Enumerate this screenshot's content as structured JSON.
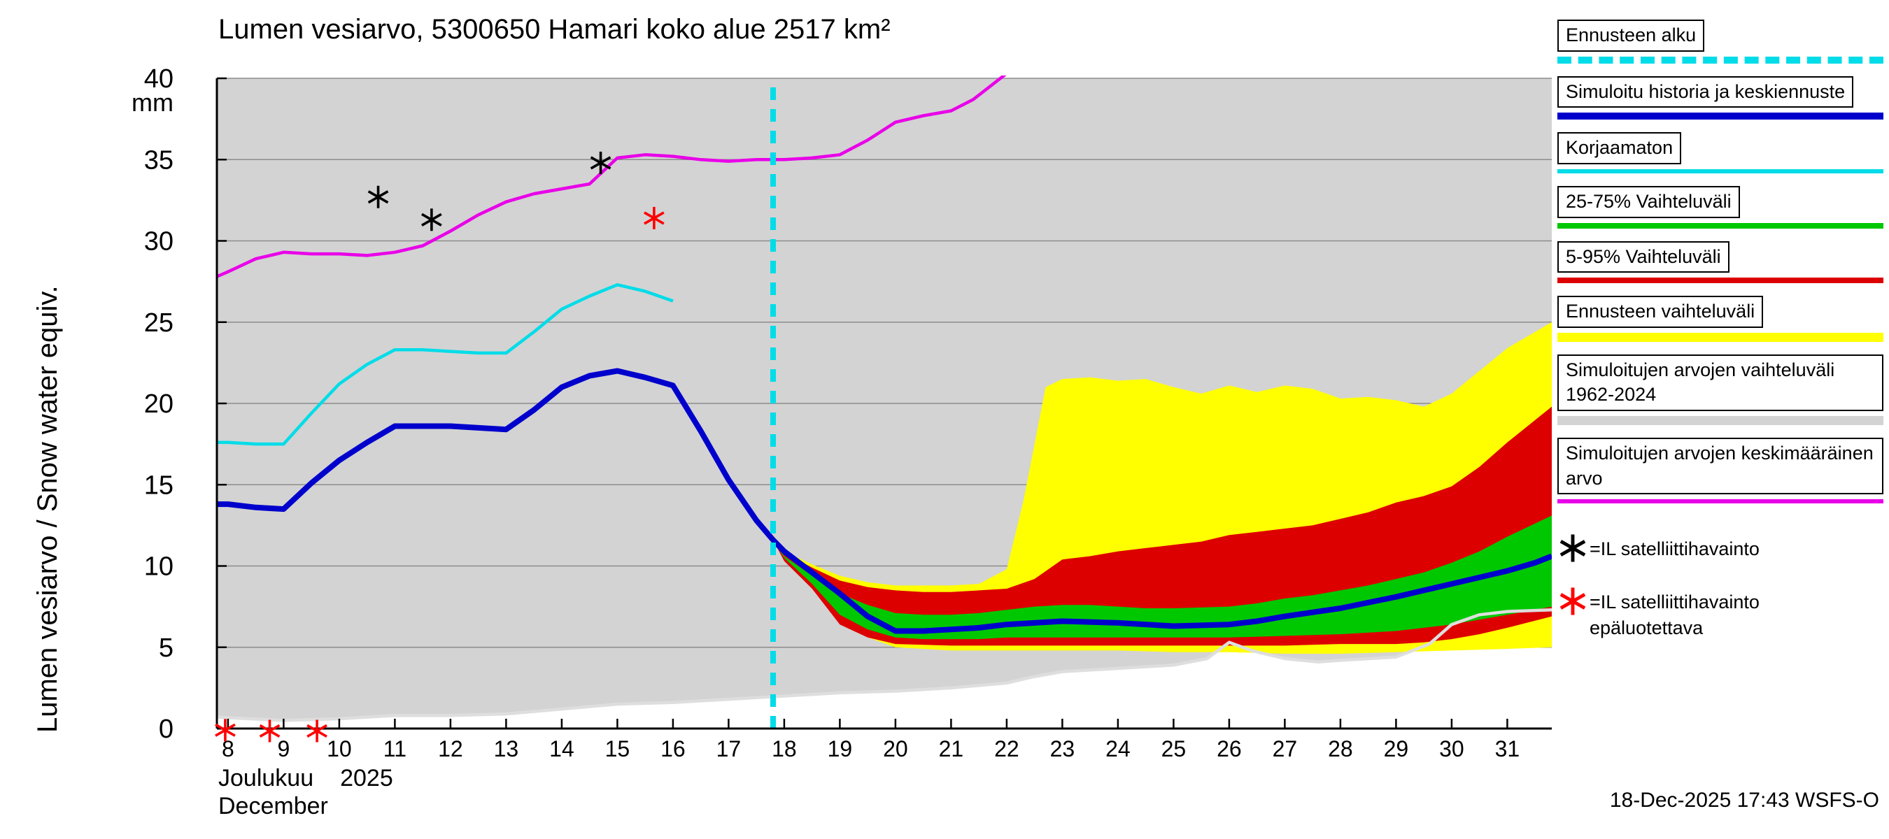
{
  "title": "Lumen vesiarvo, 5300650 Hamari koko alue 2517 km²",
  "y_axis": {
    "label": "Lumen vesiarvo / Snow water equiv.",
    "unit": "mm"
  },
  "x_axis": {
    "month_fi": "Joulukuu",
    "year": "2025",
    "month_en": "December"
  },
  "footer": {
    "timestamp": "18-Dec-2025 17:43 WSFS-O"
  },
  "legend": {
    "items": [
      {
        "label": "Ennusteen alku",
        "swatch": "dashed-cyan-line"
      },
      {
        "label": "Simuloitu historia ja keskiennuste",
        "swatch": "blue-line"
      },
      {
        "label": "Korjaamaton",
        "swatch": "cyan-line"
      },
      {
        "label": "25-75% Vaihteluväli",
        "swatch": "green-band"
      },
      {
        "label": "5-95% Vaihteluväli",
        "swatch": "red-band"
      },
      {
        "label": "Ennusteen vaihteluväli",
        "swatch": "yellow-band"
      },
      {
        "label": "Simuloitujen arvojen vaihteluväli 1962-2024",
        "swatch": "gray-band"
      },
      {
        "label": "Simuloitujen arvojen keskimääräinen arvo",
        "swatch": "magenta-line"
      },
      {
        "label": "=IL satelliittihavainto",
        "marker": "black-asterisk"
      },
      {
        "label": "=IL satelliittihavainto epäluotettava",
        "marker": "red-asterisk"
      }
    ]
  },
  "chart_data": {
    "type": "area",
    "title": "Lumen vesiarvo, 5300650 Hamari koko alue 2517 km²",
    "xlabel": "Joulukuu 2025 / December (day of month)",
    "ylabel": "Lumen vesiarvo / Snow water equiv. (mm)",
    "x_range": [
      7.8,
      31.8
    ],
    "y_range": [
      0,
      40
    ],
    "x_ticks": [
      8,
      9,
      10,
      11,
      12,
      13,
      14,
      15,
      16,
      17,
      18,
      19,
      20,
      21,
      22,
      23,
      24,
      25,
      26,
      27,
      28,
      29,
      30,
      31
    ],
    "y_ticks": [
      0,
      5,
      10,
      15,
      20,
      25,
      30,
      35,
      40
    ],
    "grid": "horizontal",
    "legend_position": "right",
    "forecast_start_x": 17.8,
    "colors": {
      "history_band": "#d3d3d3",
      "history_edge": "#dedede",
      "grid": "#8c8c8c",
      "forecast_band": "#ffff00",
      "band_5_95": "#dd0000",
      "band_25_75": "#00c800",
      "mean_line": "#e800e8",
      "uncorrected_line": "#00dce8",
      "main_line": "#0000cd",
      "forecast_start": "#00dce8",
      "marker_ok": "#000000",
      "marker_bad": "#ff0000"
    },
    "series": {
      "history_envelope": {
        "name": "Simuloitujen arvojen vaihteluväli 1962-2024",
        "upper": [
          [
            7.8,
            40
          ],
          [
            31.8,
            40
          ]
        ],
        "lower": [
          [
            7.8,
            0.7
          ],
          [
            9,
            0.5
          ],
          [
            10,
            0.6
          ],
          [
            11,
            0.8
          ],
          [
            12,
            0.8
          ],
          [
            13,
            0.9
          ],
          [
            14,
            1.2
          ],
          [
            15,
            1.5
          ],
          [
            16,
            1.6
          ],
          [
            17,
            1.8
          ],
          [
            18,
            2.0
          ],
          [
            19,
            2.2
          ],
          [
            20,
            2.3
          ],
          [
            21,
            2.5
          ],
          [
            22,
            2.8
          ],
          [
            22.5,
            3.2
          ],
          [
            23,
            3.5
          ],
          [
            24,
            3.7
          ],
          [
            25,
            3.9
          ],
          [
            25.6,
            4.3
          ],
          [
            26,
            5.3
          ],
          [
            26.4,
            4.8
          ],
          [
            27,
            4.3
          ],
          [
            27.6,
            4.1
          ],
          [
            28,
            4.2
          ],
          [
            29,
            4.4
          ],
          [
            29.6,
            5.2
          ],
          [
            30,
            6.4
          ],
          [
            30.5,
            7.0
          ],
          [
            31,
            7.2
          ],
          [
            31.8,
            7.3
          ]
        ]
      },
      "history_mean_1962_2024": {
        "name": "Simuloitujen arvojen keskimääräinen arvo",
        "points": [
          [
            7.8,
            27.8
          ],
          [
            8,
            28.1
          ],
          [
            8.5,
            28.9
          ],
          [
            9,
            29.3
          ],
          [
            9.5,
            29.2
          ],
          [
            10,
            29.2
          ],
          [
            10.5,
            29.1
          ],
          [
            11,
            29.3
          ],
          [
            11.5,
            29.7
          ],
          [
            12,
            30.6
          ],
          [
            12.5,
            31.6
          ],
          [
            13,
            32.4
          ],
          [
            13.5,
            32.9
          ],
          [
            14,
            33.2
          ],
          [
            14.5,
            33.5
          ],
          [
            15,
            35.1
          ],
          [
            15.5,
            35.3
          ],
          [
            16,
            35.2
          ],
          [
            16.5,
            35.0
          ],
          [
            17,
            34.9
          ],
          [
            17.5,
            35.0
          ],
          [
            18,
            35.0
          ],
          [
            18.5,
            35.1
          ],
          [
            19,
            35.3
          ],
          [
            19.5,
            36.2
          ],
          [
            20,
            37.3
          ],
          [
            20.5,
            37.7
          ],
          [
            21,
            38.0
          ],
          [
            21.4,
            38.7
          ],
          [
            22,
            40.3
          ]
        ]
      },
      "uncorrected": {
        "name": "Korjaamaton",
        "points": [
          [
            7.8,
            17.6
          ],
          [
            8,
            17.6
          ],
          [
            8.5,
            17.5
          ],
          [
            9,
            17.5
          ],
          [
            9.5,
            19.4
          ],
          [
            10,
            21.2
          ],
          [
            10.5,
            22.4
          ],
          [
            11,
            23.3
          ],
          [
            11.5,
            23.3
          ],
          [
            12,
            23.2
          ],
          [
            12.5,
            23.1
          ],
          [
            13,
            23.1
          ],
          [
            13.5,
            24.4
          ],
          [
            14,
            25.8
          ],
          [
            14.5,
            26.6
          ],
          [
            15,
            27.3
          ],
          [
            15.5,
            26.9
          ],
          [
            16,
            26.3
          ]
        ]
      },
      "simulated_and_forecast": {
        "name": "Simuloitu historia ja keskiennuste",
        "points": [
          [
            7.8,
            13.8
          ],
          [
            8,
            13.8
          ],
          [
            8.5,
            13.6
          ],
          [
            9,
            13.5
          ],
          [
            9.5,
            15.1
          ],
          [
            10,
            16.5
          ],
          [
            10.5,
            17.6
          ],
          [
            11,
            18.6
          ],
          [
            11.5,
            18.6
          ],
          [
            12,
            18.6
          ],
          [
            12.5,
            18.5
          ],
          [
            13,
            18.4
          ],
          [
            13.5,
            19.6
          ],
          [
            14,
            21.0
          ],
          [
            14.5,
            21.7
          ],
          [
            15,
            22.0
          ],
          [
            15.5,
            21.6
          ],
          [
            16,
            21.1
          ],
          [
            16.5,
            18.3
          ],
          [
            17,
            15.3
          ],
          [
            17.5,
            12.8
          ],
          [
            17.8,
            11.6
          ],
          [
            18,
            10.9
          ],
          [
            18.5,
            9.6
          ],
          [
            19,
            8.3
          ],
          [
            19.5,
            6.9
          ],
          [
            20,
            6.0
          ],
          [
            20.5,
            6.0
          ],
          [
            21,
            6.1
          ],
          [
            21.5,
            6.2
          ],
          [
            22,
            6.4
          ],
          [
            23,
            6.6
          ],
          [
            24,
            6.5
          ],
          [
            25,
            6.3
          ],
          [
            26,
            6.4
          ],
          [
            26.5,
            6.6
          ],
          [
            27,
            6.9
          ],
          [
            28,
            7.4
          ],
          [
            29,
            8.1
          ],
          [
            30,
            8.9
          ],
          [
            31,
            9.7
          ],
          [
            31.5,
            10.2
          ],
          [
            31.8,
            10.6
          ]
        ]
      },
      "forecast_total": {
        "name": "Ennusteen vaihteluväli",
        "upper": [
          [
            17.8,
            11.6
          ],
          [
            18,
            10.9
          ],
          [
            18.5,
            10.1
          ],
          [
            19,
            9.4
          ],
          [
            19.5,
            9.0
          ],
          [
            20,
            8.8
          ],
          [
            20.5,
            8.8
          ],
          [
            21,
            8.8
          ],
          [
            21.5,
            8.9
          ],
          [
            22,
            9.8
          ],
          [
            22.3,
            14.0
          ],
          [
            22.7,
            21.0
          ],
          [
            23,
            21.5
          ],
          [
            23.5,
            21.6
          ],
          [
            24,
            21.4
          ],
          [
            24.5,
            21.5
          ],
          [
            25,
            21.0
          ],
          [
            25.5,
            20.6
          ],
          [
            26,
            21.1
          ],
          [
            26.5,
            20.7
          ],
          [
            27,
            21.1
          ],
          [
            27.5,
            20.9
          ],
          [
            28,
            20.3
          ],
          [
            28.5,
            20.4
          ],
          [
            29,
            20.2
          ],
          [
            29.5,
            19.8
          ],
          [
            30,
            20.6
          ],
          [
            30.5,
            22.0
          ],
          [
            31,
            23.4
          ],
          [
            31.8,
            25.0
          ]
        ],
        "lower": [
          [
            17.8,
            11.6
          ],
          [
            18,
            10.4
          ],
          [
            18.5,
            8.8
          ],
          [
            19,
            6.8
          ],
          [
            19.5,
            5.6
          ],
          [
            20,
            5.0
          ],
          [
            20.5,
            4.9
          ],
          [
            21,
            4.8
          ],
          [
            22,
            4.8
          ],
          [
            23,
            4.8
          ],
          [
            24,
            4.8
          ],
          [
            25,
            4.7
          ],
          [
            26,
            4.7
          ],
          [
            27,
            4.6
          ],
          [
            28,
            4.6
          ],
          [
            29,
            4.7
          ],
          [
            30,
            4.8
          ],
          [
            31,
            4.9
          ],
          [
            31.8,
            5.0
          ]
        ]
      },
      "range_5_95": {
        "name": "5-95% Vaihteluväli",
        "upper": [
          [
            17.8,
            11.6
          ],
          [
            18,
            10.8
          ],
          [
            18.5,
            9.9
          ],
          [
            19,
            9.1
          ],
          [
            19.5,
            8.7
          ],
          [
            20,
            8.5
          ],
          [
            20.5,
            8.4
          ],
          [
            21,
            8.4
          ],
          [
            21.5,
            8.5
          ],
          [
            22,
            8.6
          ],
          [
            22.5,
            9.2
          ],
          [
            23,
            10.4
          ],
          [
            23.5,
            10.6
          ],
          [
            24,
            10.9
          ],
          [
            24.5,
            11.1
          ],
          [
            25,
            11.3
          ],
          [
            25.5,
            11.5
          ],
          [
            26,
            11.9
          ],
          [
            26.5,
            12.1
          ],
          [
            27,
            12.3
          ],
          [
            27.5,
            12.5
          ],
          [
            28,
            12.9
          ],
          [
            28.5,
            13.3
          ],
          [
            29,
            13.9
          ],
          [
            29.5,
            14.3
          ],
          [
            30,
            14.9
          ],
          [
            30.5,
            16.1
          ],
          [
            31,
            17.6
          ],
          [
            31.8,
            19.8
          ]
        ],
        "lower": [
          [
            17.8,
            11.6
          ],
          [
            18,
            10.3
          ],
          [
            18.5,
            8.6
          ],
          [
            19,
            6.4
          ],
          [
            19.5,
            5.6
          ],
          [
            20,
            5.2
          ],
          [
            21,
            5.1
          ],
          [
            22,
            5.1
          ],
          [
            23,
            5.1
          ],
          [
            24,
            5.1
          ],
          [
            25,
            5.1
          ],
          [
            26,
            5.1
          ],
          [
            27,
            5.1
          ],
          [
            28,
            5.2
          ],
          [
            29,
            5.2
          ],
          [
            29.5,
            5.3
          ],
          [
            30,
            5.5
          ],
          [
            30.5,
            5.8
          ],
          [
            31,
            6.2
          ],
          [
            31.8,
            6.9
          ]
        ]
      },
      "range_25_75": {
        "name": "25-75% Vaihteluväli",
        "upper": [
          [
            17.8,
            11.6
          ],
          [
            18,
            10.6
          ],
          [
            18.5,
            9.4
          ],
          [
            19,
            8.3
          ],
          [
            19.5,
            7.6
          ],
          [
            20,
            7.1
          ],
          [
            20.5,
            7.0
          ],
          [
            21,
            7.0
          ],
          [
            21.5,
            7.1
          ],
          [
            22,
            7.3
          ],
          [
            22.5,
            7.5
          ],
          [
            23,
            7.6
          ],
          [
            23.5,
            7.6
          ],
          [
            24,
            7.5
          ],
          [
            24.5,
            7.4
          ],
          [
            25,
            7.4
          ],
          [
            26,
            7.5
          ],
          [
            26.5,
            7.7
          ],
          [
            27,
            8.0
          ],
          [
            27.5,
            8.2
          ],
          [
            28,
            8.5
          ],
          [
            28.5,
            8.8
          ],
          [
            29,
            9.2
          ],
          [
            29.5,
            9.6
          ],
          [
            30,
            10.2
          ],
          [
            30.5,
            10.9
          ],
          [
            31,
            11.8
          ],
          [
            31.8,
            13.1
          ]
        ],
        "lower": [
          [
            17.8,
            11.6
          ],
          [
            18,
            10.5
          ],
          [
            18.5,
            8.9
          ],
          [
            19,
            7.0
          ],
          [
            19.5,
            6.1
          ],
          [
            20,
            5.6
          ],
          [
            20.5,
            5.5
          ],
          [
            21,
            5.5
          ],
          [
            21.5,
            5.5
          ],
          [
            22,
            5.6
          ],
          [
            23,
            5.6
          ],
          [
            24,
            5.6
          ],
          [
            25,
            5.6
          ],
          [
            26,
            5.6
          ],
          [
            27,
            5.7
          ],
          [
            28,
            5.8
          ],
          [
            29,
            6.0
          ],
          [
            29.5,
            6.2
          ],
          [
            30,
            6.4
          ],
          [
            30.5,
            6.7
          ],
          [
            31,
            7.0
          ],
          [
            31.8,
            7.5
          ]
        ]
      }
    },
    "markers": {
      "satellite": [
        [
          10.7,
          32.7
        ],
        [
          11.66,
          31.3
        ],
        [
          14.7,
          34.8
        ]
      ],
      "satellite_unreliable": [
        [
          15.66,
          31.4
        ],
        [
          7.95,
          -0.1
        ],
        [
          8.75,
          -0.15
        ],
        [
          9.6,
          -0.15
        ]
      ]
    }
  }
}
